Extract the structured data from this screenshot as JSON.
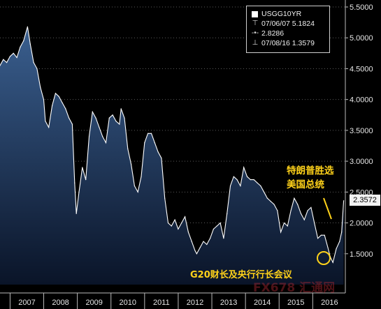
{
  "legend": {
    "title": "USGG10YR",
    "high_label": "07/06/07 5.1824",
    "avg_label": "2.8286",
    "low_label": "07/08/16 1.3579"
  },
  "last_value_label": "2.3572",
  "annotations": {
    "election": [
      "特朗普胜选",
      "美国总统"
    ],
    "g20": "G20财长及央行行长会议"
  },
  "watermark": "FX678 汇通网",
  "colors": {
    "line": "#ffffff",
    "fill_top": "#3a5f8f",
    "fill_bottom": "#0a1428",
    "annotation": "#ffd21a",
    "grid": "#5a5a5a"
  },
  "chart_data": {
    "type": "area",
    "title": "",
    "xlabel": "",
    "ylabel": "",
    "ylim": [
      1.0,
      5.5
    ],
    "y_ticks": [
      "1.5000",
      "2.0000",
      "2.5000",
      "3.0000",
      "3.5000",
      "4.0000",
      "4.5000",
      "5.0000",
      "5.5000"
    ],
    "x_ticks": [
      "2007",
      "2008",
      "2009",
      "2010",
      "2011",
      "2012",
      "2013",
      "2014",
      "2015",
      "2016"
    ],
    "grid": true,
    "series": [
      {
        "name": "USGG10YR",
        "x": [
          2006.7,
          2006.8,
          2006.9,
          2007.0,
          2007.1,
          2007.2,
          2007.3,
          2007.4,
          2007.52,
          2007.6,
          2007.7,
          2007.8,
          2007.9,
          2008.0,
          2008.05,
          2008.15,
          2008.25,
          2008.35,
          2008.45,
          2008.55,
          2008.65,
          2008.75,
          2008.85,
          2008.92,
          2008.97,
          2009.05,
          2009.15,
          2009.25,
          2009.35,
          2009.45,
          2009.55,
          2009.65,
          2009.75,
          2009.85,
          2009.95,
          2010.05,
          2010.15,
          2010.25,
          2010.3,
          2010.4,
          2010.5,
          2010.6,
          2010.7,
          2010.8,
          2010.9,
          2011.0,
          2011.1,
          2011.2,
          2011.3,
          2011.4,
          2011.5,
          2011.6,
          2011.7,
          2011.8,
          2011.9,
          2012.0,
          2012.1,
          2012.2,
          2012.3,
          2012.4,
          2012.5,
          2012.55,
          2012.65,
          2012.75,
          2012.85,
          2012.95,
          2013.05,
          2013.15,
          2013.25,
          2013.35,
          2013.45,
          2013.55,
          2013.65,
          2013.75,
          2013.85,
          2013.95,
          2014.05,
          2014.15,
          2014.25,
          2014.35,
          2014.45,
          2014.55,
          2014.65,
          2014.75,
          2014.85,
          2014.95,
          2015.05,
          2015.15,
          2015.25,
          2015.35,
          2015.45,
          2015.55,
          2015.65,
          2015.75,
          2015.85,
          2015.95,
          2016.05,
          2016.15,
          2016.25,
          2016.35,
          2016.45,
          2016.52,
          2016.6,
          2016.7,
          2016.8,
          2016.86,
          2016.92
        ],
        "values": [
          4.55,
          4.65,
          4.6,
          4.7,
          4.75,
          4.68,
          4.85,
          4.95,
          5.18,
          4.9,
          4.6,
          4.5,
          4.2,
          4.0,
          3.65,
          3.55,
          3.9,
          4.1,
          4.05,
          3.95,
          3.85,
          3.7,
          3.6,
          2.65,
          2.15,
          2.5,
          2.9,
          2.7,
          3.4,
          3.8,
          3.7,
          3.55,
          3.4,
          3.3,
          3.7,
          3.75,
          3.65,
          3.6,
          3.85,
          3.7,
          3.2,
          2.95,
          2.6,
          2.5,
          2.75,
          3.3,
          3.45,
          3.45,
          3.3,
          3.15,
          3.05,
          2.4,
          2.0,
          1.95,
          2.05,
          1.9,
          2.0,
          2.1,
          1.85,
          1.7,
          1.55,
          1.5,
          1.6,
          1.7,
          1.65,
          1.75,
          1.9,
          1.95,
          2.0,
          1.75,
          2.15,
          2.6,
          2.75,
          2.7,
          2.6,
          2.9,
          2.75,
          2.7,
          2.7,
          2.65,
          2.6,
          2.5,
          2.4,
          2.35,
          2.3,
          2.2,
          1.85,
          2.0,
          1.95,
          2.2,
          2.4,
          2.3,
          2.15,
          2.05,
          2.2,
          2.25,
          2.0,
          1.75,
          1.8,
          1.8,
          1.6,
          1.45,
          1.36,
          1.58,
          1.7,
          1.85,
          2.36
        ]
      }
    ]
  }
}
